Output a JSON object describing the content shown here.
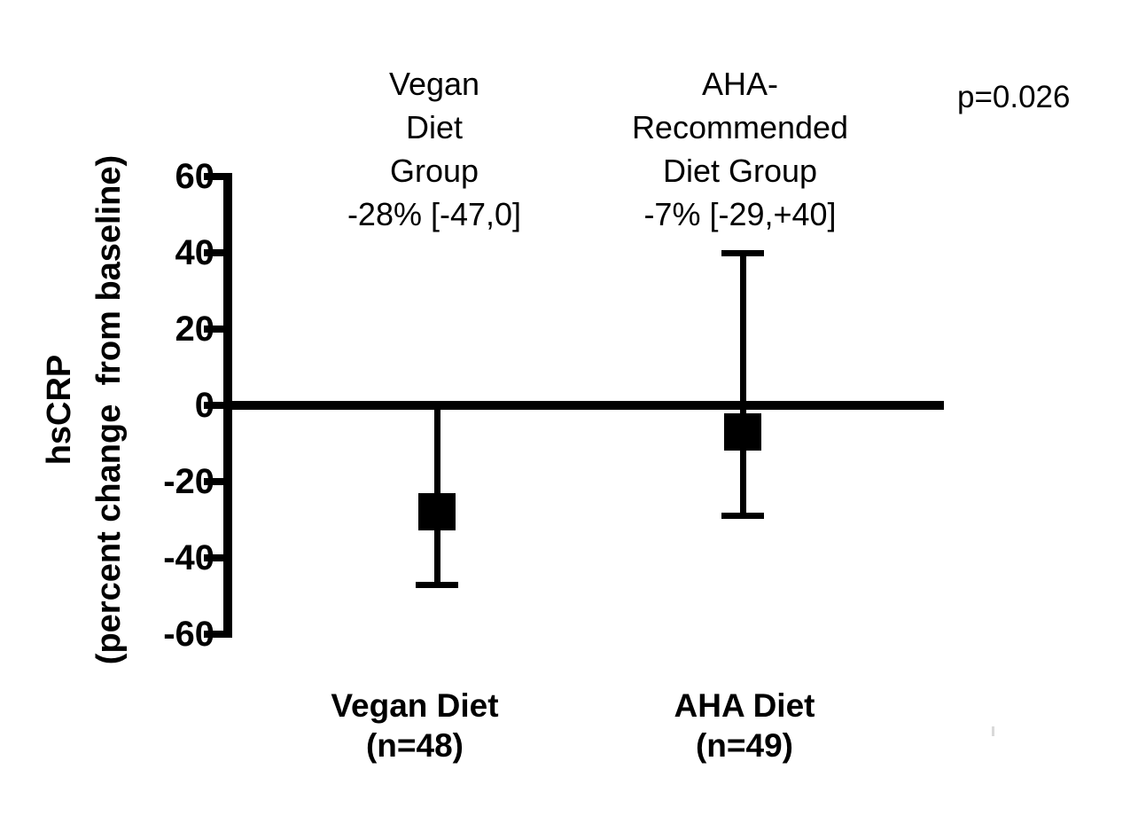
{
  "figure": {
    "y_axis": {
      "title_line1": "hsCRP",
      "title_line2": "(percent change  from baseline)"
    },
    "p_value": "p=0.026",
    "groups": [
      {
        "header_lines": [
          "Vegan",
          "Diet",
          "Group"
        ],
        "summary": "-28% [-47,0]",
        "axis_label": "Vegan Diet",
        "axis_sublabel": "(n=48)"
      },
      {
        "header_lines": [
          "AHA-",
          "Recommended",
          "Diet Group"
        ],
        "summary": "-7% [-29,+40]",
        "axis_label": "AHA Diet",
        "axis_sublabel": "(n=49)"
      }
    ]
  },
  "chart_data": {
    "type": "scatter",
    "title": "",
    "xlabel": "",
    "ylabel": "hsCRP (percent change from baseline)",
    "ylim": [
      -60,
      60
    ],
    "yticks": [
      60,
      40,
      20,
      0,
      -20,
      -40,
      -60
    ],
    "baseline": 0,
    "grid": false,
    "legend": "none",
    "categories": [
      "Vegan Diet (n=48)",
      "AHA Diet (n=49)"
    ],
    "series": [
      {
        "name": "Vegan Diet Group",
        "n": 48,
        "median_percent_change": -28,
        "ci_low": -47,
        "ci_high": 0,
        "label": "-28% [-47,0]"
      },
      {
        "name": "AHA-Recommended Diet Group",
        "n": 49,
        "median_percent_change": -7,
        "ci_low": -29,
        "ci_high": 40,
        "label": "-7% [-29,+40]"
      }
    ],
    "p_value": 0.026,
    "marker": "filled-square",
    "ink_color": "#000000"
  }
}
